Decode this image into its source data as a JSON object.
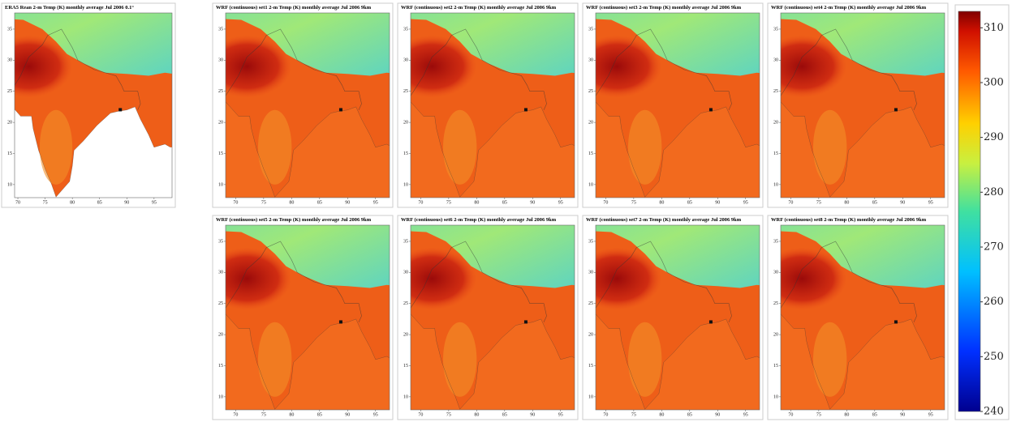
{
  "panels": [
    {
      "title": "ERA5 Rean 2-m Temp (K) monthly average Jul 2006 0.1°",
      "xlim": [
        69.4,
        98.3
      ],
      "ylim": [
        7.9,
        37.6
      ],
      "xticks": [
        70,
        75,
        80,
        85,
        90,
        95
      ],
      "yticks": [
        35,
        30,
        25,
        20,
        15,
        10
      ]
    },
    {
      "title": "WRF (continuous) set1 2-m Temp (K) monthly average Jul 2006 9km",
      "xlim": [
        68.2,
        97.5
      ],
      "ylim": [
        7.9,
        37.6
      ],
      "xticks": [
        70,
        75,
        80,
        85,
        90,
        95
      ],
      "yticks": [
        35,
        30,
        25,
        20,
        15,
        10
      ]
    },
    {
      "title": "WRF (continuous) set2 2-m Temp (K) monthly average Jul 2006 9km",
      "xlim": [
        68.2,
        97.5
      ],
      "ylim": [
        7.9,
        37.6
      ],
      "xticks": [
        70,
        75,
        80,
        85,
        90,
        95
      ],
      "yticks": [
        35,
        30,
        25,
        20,
        15,
        10
      ]
    },
    {
      "title": "WRF (continuous) set3 2-m Temp (K) monthly average Jul 2006 9km",
      "xlim": [
        68.2,
        97.5
      ],
      "ylim": [
        7.9,
        37.6
      ],
      "xticks": [
        70,
        75,
        80,
        85,
        90,
        95
      ],
      "yticks": [
        35,
        30,
        25,
        20,
        15,
        10
      ]
    },
    {
      "title": "WRF (continuous) set4 2-m Temp (K) monthly average Jul 2006 9km",
      "xlim": [
        68.2,
        97.5
      ],
      "ylim": [
        7.9,
        37.6
      ],
      "xticks": [
        70,
        75,
        80,
        85,
        90,
        95
      ],
      "yticks": [
        35,
        30,
        25,
        20,
        15,
        10
      ]
    },
    {
      "title": "WRF (continuous) set5 2-m Temp (K) monthly average Jul 2006 9km",
      "xlim": [
        68.2,
        97.5
      ],
      "ylim": [
        7.9,
        37.6
      ],
      "xticks": [
        70,
        75,
        80,
        85,
        90,
        95
      ],
      "yticks": [
        35,
        30,
        25,
        20,
        15,
        10
      ]
    },
    {
      "title": "WRF (continuous) set6 2-m Temp (K) monthly average Jul 2006 9km",
      "xlim": [
        68.2,
        97.5
      ],
      "ylim": [
        7.9,
        37.6
      ],
      "xticks": [
        70,
        75,
        80,
        85,
        90,
        95
      ],
      "yticks": [
        35,
        30,
        25,
        20,
        15,
        10
      ]
    },
    {
      "title": "WRF (continuous) set7 2-m Temp (K) monthly average Jul 2006 9km",
      "xlim": [
        68.2,
        97.5
      ],
      "ylim": [
        7.9,
        37.6
      ],
      "xticks": [
        70,
        75,
        80,
        85,
        90,
        95
      ],
      "yticks": [
        35,
        30,
        25,
        20,
        15,
        10
      ]
    },
    {
      "title": "WRF (continuous) set8 2-m Temp (K) monthly average Jul 2006 9km",
      "xlim": [
        68.2,
        97.5
      ],
      "ylim": [
        7.9,
        37.6
      ],
      "xticks": [
        70,
        75,
        80,
        85,
        90,
        95
      ],
      "yticks": [
        35,
        30,
        25,
        20,
        15,
        10
      ]
    }
  ],
  "colorbar": {
    "lim": [
      240,
      313
    ],
    "ticks": [
      310,
      300,
      290,
      280,
      270,
      260,
      250,
      240
    ]
  }
}
